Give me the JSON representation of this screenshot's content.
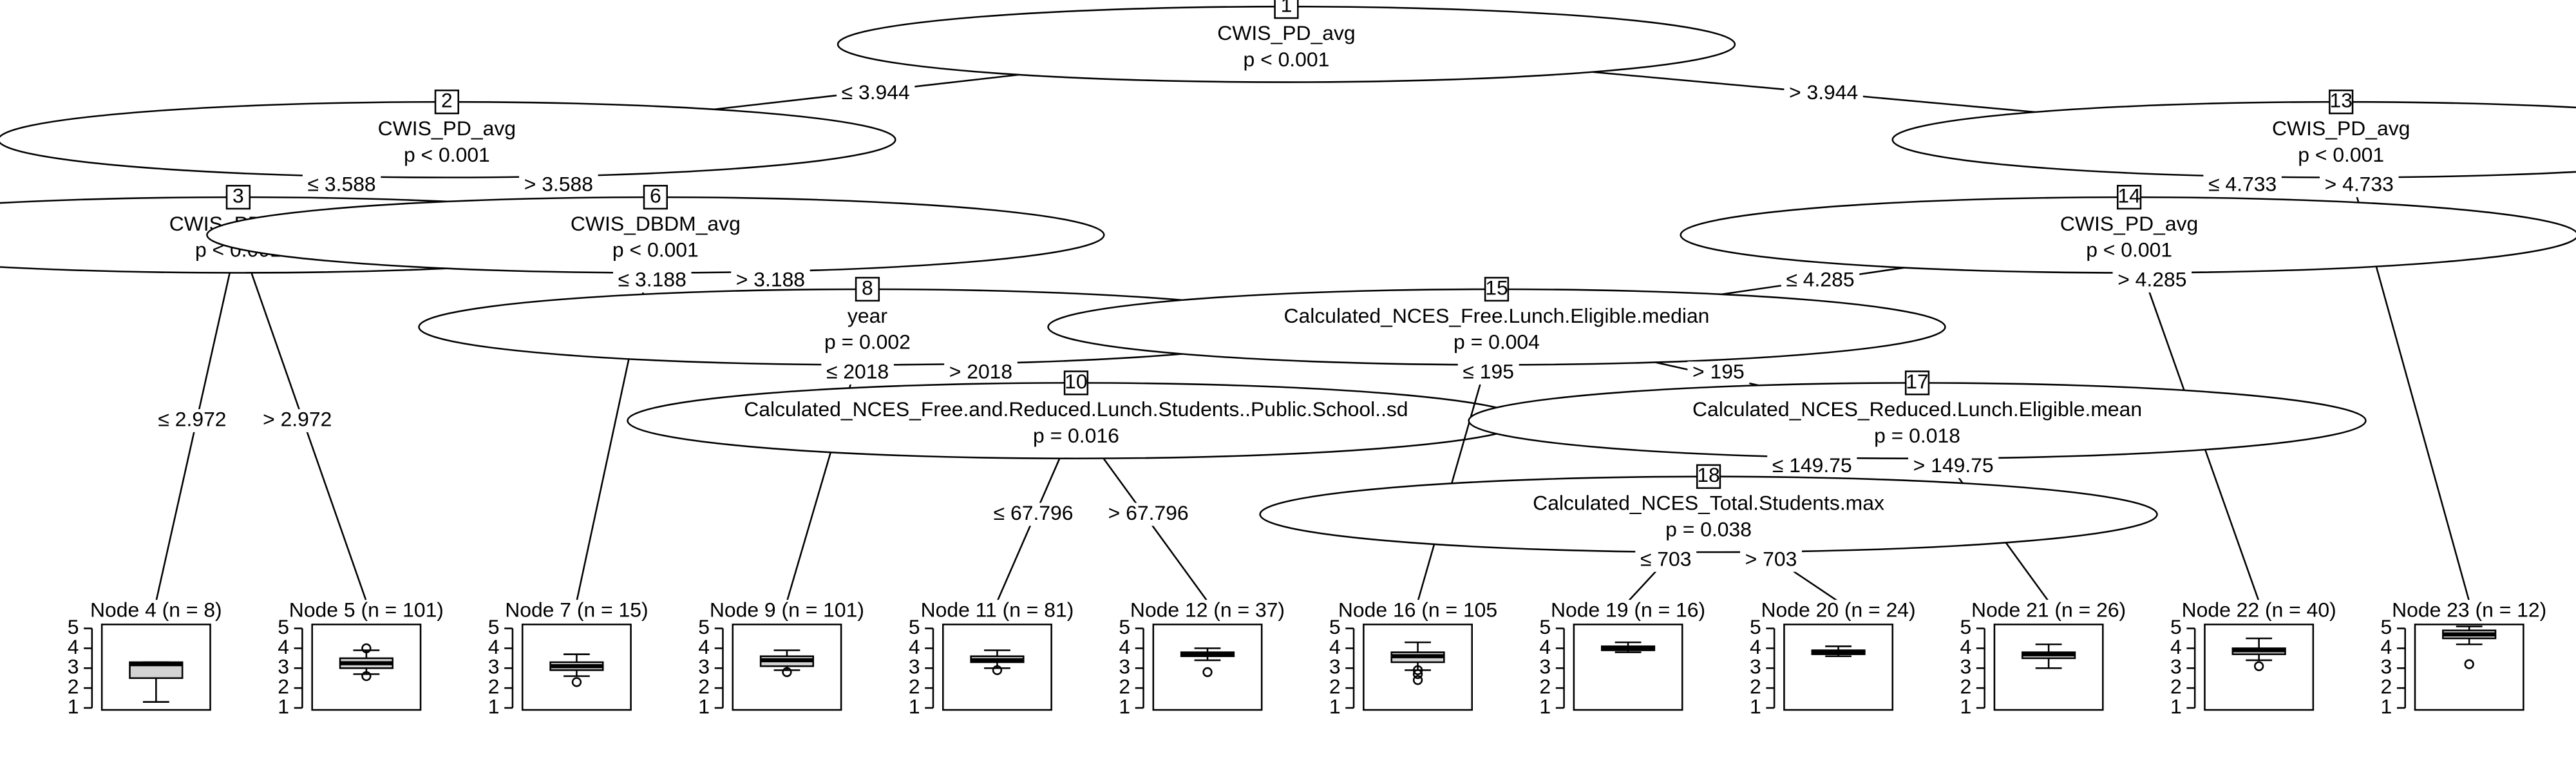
{
  "boxplot_axis": {
    "ylim": [
      0.9,
      5.2
    ],
    "yticks": [
      1,
      2,
      3,
      4,
      5
    ]
  },
  "inner_nodes": [
    {
      "id": "1",
      "variable": "CWIS_PD_avg",
      "p": "p < 0.001"
    },
    {
      "id": "2",
      "variable": "CWIS_PD_avg",
      "p": "p < 0.001"
    },
    {
      "id": "3",
      "variable": "CWIS_PD_avg",
      "p": "p < 0.001"
    },
    {
      "id": "6",
      "variable": "CWIS_DBDM_avg",
      "p": "p < 0.001"
    },
    {
      "id": "8",
      "variable": "year",
      "p": "p = 0.002"
    },
    {
      "id": "10",
      "variable": "Calculated_NCES_Free.and.Reduced.Lunch.Students..Public.School..sd",
      "p": "p = 0.016"
    },
    {
      "id": "13",
      "variable": "CWIS_PD_avg",
      "p": "p < 0.001"
    },
    {
      "id": "14",
      "variable": "CWIS_PD_avg",
      "p": "p < 0.001"
    },
    {
      "id": "15",
      "variable": "Calculated_NCES_Free.Lunch.Eligible.median",
      "p": "p = 0.004"
    },
    {
      "id": "17",
      "variable": "Calculated_NCES_Reduced.Lunch.Eligible.mean",
      "p": "p = 0.018"
    },
    {
      "id": "18",
      "variable": "Calculated_NCES_Total.Students.max",
      "p": "p = 0.038"
    }
  ],
  "edges": [
    {
      "from": "1",
      "to": "2",
      "label": "≤ 3.944"
    },
    {
      "from": "1",
      "to": "13",
      "label": "> 3.944"
    },
    {
      "from": "2",
      "to": "3",
      "label": "≤ 3.588"
    },
    {
      "from": "2",
      "to": "6",
      "label": "> 3.588"
    },
    {
      "from": "3",
      "to": "4",
      "label": "≤ 2.972"
    },
    {
      "from": "3",
      "to": "5",
      "label": "> 2.972"
    },
    {
      "from": "6",
      "to": "7",
      "label": "≤ 3.188"
    },
    {
      "from": "6",
      "to": "8",
      "label": "> 3.188"
    },
    {
      "from": "8",
      "to": "9",
      "label": "≤ 2018"
    },
    {
      "from": "8",
      "to": "10",
      "label": "> 2018"
    },
    {
      "from": "10",
      "to": "11",
      "label": "≤ 67.796"
    },
    {
      "from": "10",
      "to": "12",
      "label": "> 67.796"
    },
    {
      "from": "13",
      "to": "14",
      "label": "≤ 4.733"
    },
    {
      "from": "13",
      "to": "23",
      "label": "> 4.733"
    },
    {
      "from": "14",
      "to": "15",
      "label": "≤ 4.285"
    },
    {
      "from": "14",
      "to": "22",
      "label": "> 4.285"
    },
    {
      "from": "15",
      "to": "16",
      "label": "≤ 195"
    },
    {
      "from": "15",
      "to": "17",
      "label": "> 195"
    },
    {
      "from": "17",
      "to": "18",
      "label": "≤ 149.75"
    },
    {
      "from": "17",
      "to": "21",
      "label": "> 149.75"
    },
    {
      "from": "18",
      "to": "19",
      "label": "≤ 703"
    },
    {
      "from": "18",
      "to": "20",
      "label": "> 703"
    }
  ],
  "terminals": [
    {
      "id": "4",
      "label": "Node 4 (n = 8)",
      "box": {
        "whisker_low": 1.3,
        "q1": 2.5,
        "median": 3.2,
        "q3": 3.3,
        "whisker_high": 3.3,
        "outliers": []
      }
    },
    {
      "id": "5",
      "label": "Node 5 (n = 101)",
      "box": {
        "whisker_low": 2.7,
        "q1": 3.0,
        "median": 3.25,
        "q3": 3.5,
        "whisker_high": 3.9,
        "outliers": [
          2.6,
          4.0
        ]
      }
    },
    {
      "id": "7",
      "label": "Node 7 (n = 15)",
      "box": {
        "whisker_low": 2.6,
        "q1": 2.9,
        "median": 3.1,
        "q3": 3.3,
        "whisker_high": 3.7,
        "outliers": [
          2.3
        ]
      }
    },
    {
      "id": "9",
      "label": "Node 9 (n = 101)",
      "box": {
        "whisker_low": 2.9,
        "q1": 3.1,
        "median": 3.4,
        "q3": 3.6,
        "whisker_high": 3.9,
        "outliers": [
          2.8
        ]
      }
    },
    {
      "id": "11",
      "label": "Node 11 (n = 81)",
      "box": {
        "whisker_low": 3.0,
        "q1": 3.3,
        "median": 3.4,
        "q3": 3.6,
        "whisker_high": 3.9,
        "outliers": [
          2.9
        ]
      }
    },
    {
      "id": "12",
      "label": "Node 12 (n = 37)",
      "box": {
        "whisker_low": 3.4,
        "q1": 3.6,
        "median": 3.7,
        "q3": 3.8,
        "whisker_high": 4.0,
        "outliers": [
          2.8
        ]
      }
    },
    {
      "id": "16",
      "label": "Node 16 (n = 105",
      "box": {
        "whisker_low": 2.9,
        "q1": 3.3,
        "median": 3.6,
        "q3": 3.8,
        "whisker_high": 4.3,
        "outliers": [
          2.4,
          2.7,
          2.9
        ]
      }
    },
    {
      "id": "19",
      "label": "Node 19 (n = 16)",
      "box": {
        "whisker_low": 3.8,
        "q1": 3.9,
        "median": 4.0,
        "q3": 4.1,
        "whisker_high": 4.3,
        "outliers": []
      }
    },
    {
      "id": "20",
      "label": "Node 20 (n = 24)",
      "box": {
        "whisker_low": 3.6,
        "q1": 3.7,
        "median": 3.8,
        "q3": 3.9,
        "whisker_high": 4.1,
        "outliers": []
      }
    },
    {
      "id": "21",
      "label": "Node 21 (n = 26)",
      "box": {
        "whisker_low": 3.0,
        "q1": 3.5,
        "median": 3.7,
        "q3": 3.8,
        "whisker_high": 4.2,
        "outliers": []
      }
    },
    {
      "id": "22",
      "label": "Node 22 (n = 40)",
      "box": {
        "whisker_low": 3.4,
        "q1": 3.7,
        "median": 3.9,
        "q3": 4.0,
        "whisker_high": 4.5,
        "outliers": [
          3.1
        ]
      }
    },
    {
      "id": "23",
      "label": "Node 23 (n = 12)",
      "box": {
        "whisker_low": 4.2,
        "q1": 4.5,
        "median": 4.7,
        "q3": 4.9,
        "whisker_high": 5.1,
        "outliers": [
          3.2
        ]
      }
    }
  ]
}
